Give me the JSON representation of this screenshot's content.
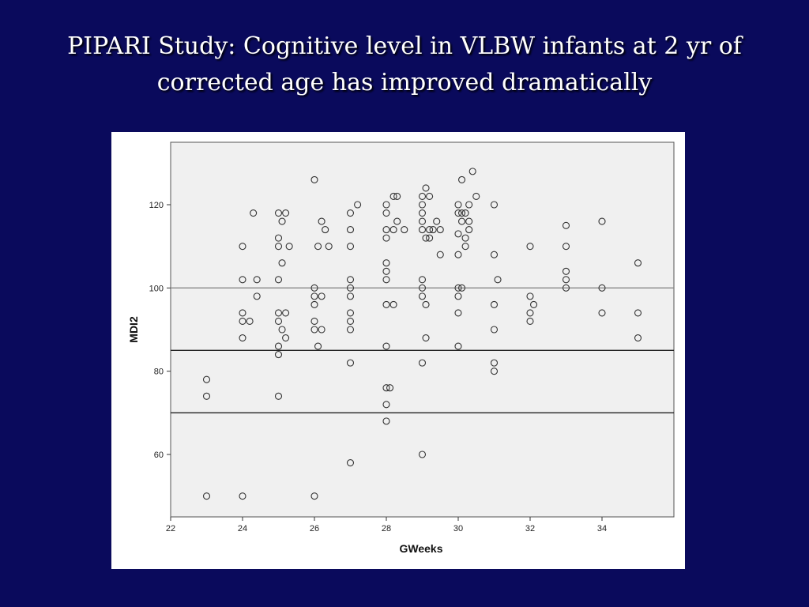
{
  "slide": {
    "title_line1": "PIPARI Study: Cognitive level in VLBW infants at 2 yr of",
    "title_line2": "corrected age has improved dramatically"
  },
  "colors": {
    "background": "#0a0a5c",
    "plot_area": "#f0f0f0",
    "marker": "#333333",
    "reference_line_100": "#888888",
    "reference_lines": "#222222"
  },
  "chart_data": {
    "type": "scatter",
    "title": "",
    "xlabel": "GWeeks",
    "ylabel": "MDI2",
    "xlim": [
      22,
      36
    ],
    "ylim": [
      45,
      135
    ],
    "x_ticks": [
      22,
      24,
      26,
      28,
      30,
      32,
      34
    ],
    "y_ticks": [
      60,
      80,
      100,
      120
    ],
    "reference_lines": [
      100,
      85,
      70
    ],
    "grid": false,
    "marker": "hollow-circle",
    "points": [
      [
        23,
        78
      ],
      [
        23,
        74
      ],
      [
        23,
        50
      ],
      [
        24,
        110
      ],
      [
        24,
        102
      ],
      [
        24,
        94
      ],
      [
        24,
        92
      ],
      [
        24,
        88
      ],
      [
        24,
        50
      ],
      [
        24.2,
        92
      ],
      [
        24.3,
        118
      ],
      [
        24.4,
        102
      ],
      [
        24.4,
        98
      ],
      [
        25,
        118
      ],
      [
        25,
        112
      ],
      [
        25,
        110
      ],
      [
        25,
        102
      ],
      [
        25,
        94
      ],
      [
        25,
        92
      ],
      [
        25,
        86
      ],
      [
        25,
        84
      ],
      [
        25,
        74
      ],
      [
        25.1,
        116
      ],
      [
        25.1,
        106
      ],
      [
        25.1,
        90
      ],
      [
        25.2,
        118
      ],
      [
        25.2,
        94
      ],
      [
        25.2,
        88
      ],
      [
        25.3,
        110
      ],
      [
        26,
        126
      ],
      [
        26,
        100
      ],
      [
        26,
        98
      ],
      [
        26,
        96
      ],
      [
        26,
        92
      ],
      [
        26,
        90
      ],
      [
        26,
        50
      ],
      [
        26.1,
        110
      ],
      [
        26.1,
        86
      ],
      [
        26.2,
        116
      ],
      [
        26.2,
        98
      ],
      [
        26.2,
        90
      ],
      [
        26.3,
        114
      ],
      [
        26.4,
        110
      ],
      [
        27,
        118
      ],
      [
        27,
        114
      ],
      [
        27,
        110
      ],
      [
        27,
        102
      ],
      [
        27,
        100
      ],
      [
        27,
        98
      ],
      [
        27,
        94
      ],
      [
        27,
        92
      ],
      [
        27,
        90
      ],
      [
        27,
        82
      ],
      [
        27,
        58
      ],
      [
        27.2,
        120
      ],
      [
        28,
        120
      ],
      [
        28,
        118
      ],
      [
        28,
        114
      ],
      [
        28,
        112
      ],
      [
        28,
        106
      ],
      [
        28,
        104
      ],
      [
        28,
        102
      ],
      [
        28,
        96
      ],
      [
        28,
        86
      ],
      [
        28,
        76
      ],
      [
        28,
        72
      ],
      [
        28,
        68
      ],
      [
        28.1,
        76
      ],
      [
        28.2,
        122
      ],
      [
        28.2,
        114
      ],
      [
        28.2,
        96
      ],
      [
        28.3,
        122
      ],
      [
        28.3,
        116
      ],
      [
        28.5,
        114
      ],
      [
        29,
        122
      ],
      [
        29,
        120
      ],
      [
        29,
        118
      ],
      [
        29,
        116
      ],
      [
        29,
        114
      ],
      [
        29,
        102
      ],
      [
        29,
        100
      ],
      [
        29,
        98
      ],
      [
        29,
        82
      ],
      [
        29,
        60
      ],
      [
        29.1,
        124
      ],
      [
        29.1,
        112
      ],
      [
        29.1,
        96
      ],
      [
        29.1,
        88
      ],
      [
        29.2,
        122
      ],
      [
        29.2,
        114
      ],
      [
        29.2,
        112
      ],
      [
        29.3,
        114
      ],
      [
        29.4,
        116
      ],
      [
        29.5,
        114
      ],
      [
        29.5,
        108
      ],
      [
        30,
        120
      ],
      [
        30,
        118
      ],
      [
        30,
        113
      ],
      [
        30,
        108
      ],
      [
        30,
        100
      ],
      [
        30,
        98
      ],
      [
        30,
        94
      ],
      [
        30,
        86
      ],
      [
        30.1,
        126
      ],
      [
        30.1,
        118
      ],
      [
        30.1,
        116
      ],
      [
        30.1,
        100
      ],
      [
        30.2,
        118
      ],
      [
        30.2,
        112
      ],
      [
        30.2,
        110
      ],
      [
        30.3,
        120
      ],
      [
        30.3,
        116
      ],
      [
        30.3,
        114
      ],
      [
        30.4,
        128
      ],
      [
        30.5,
        122
      ],
      [
        31,
        120
      ],
      [
        31,
        108
      ],
      [
        31,
        96
      ],
      [
        31,
        90
      ],
      [
        31,
        82
      ],
      [
        31,
        80
      ],
      [
        31.1,
        102
      ],
      [
        32,
        110
      ],
      [
        32,
        98
      ],
      [
        32,
        94
      ],
      [
        32,
        92
      ],
      [
        32.1,
        96
      ],
      [
        33,
        115
      ],
      [
        33,
        110
      ],
      [
        33,
        104
      ],
      [
        33,
        102
      ],
      [
        33,
        100
      ],
      [
        34,
        116
      ],
      [
        34,
        100
      ],
      [
        34,
        94
      ],
      [
        35,
        106
      ],
      [
        35,
        94
      ],
      [
        35,
        88
      ]
    ]
  }
}
